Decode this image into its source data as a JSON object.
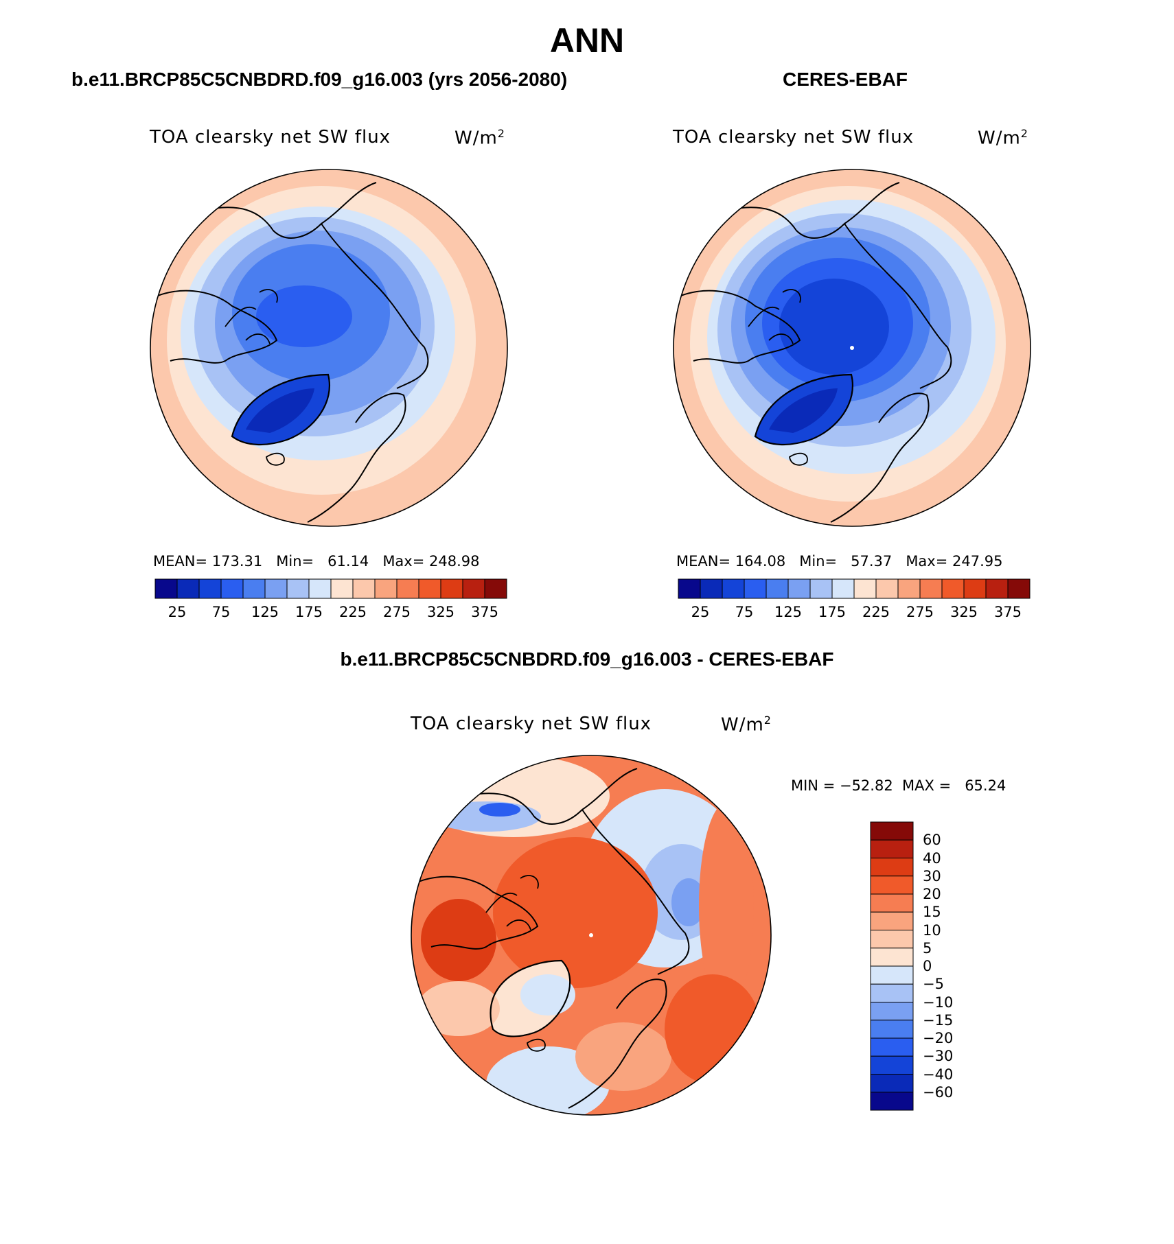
{
  "page": {
    "title": "ANN",
    "left_subtitle": "b.e11.BRCP85C5CNBDRD.f09_g16.003 (yrs 2056-2080)",
    "right_subtitle": "CERES-EBAF",
    "diff_subtitle": "b.e11.BRCP85C5CNBDRD.f09_g16.003 - CERES-EBAF"
  },
  "panels": [
    {
      "id": "model",
      "variable": "TOA clearsky net SW flux",
      "units": "W/m",
      "units_exp": "2",
      "mean_label": "MEAN=",
      "mean": "173.31",
      "min_label": "Min=",
      "min": "61.14",
      "max_label": "Max=",
      "max": "248.98"
    },
    {
      "id": "obs",
      "variable": "TOA clearsky net SW flux",
      "units": "W/m",
      "units_exp": "2",
      "mean_label": "MEAN=",
      "mean": "164.08",
      "min_label": "Min=",
      "min": "57.37",
      "max_label": "Max=",
      "max": "247.95"
    },
    {
      "id": "diff",
      "variable": "TOA clearsky net SW flux",
      "units": "W/m",
      "units_exp": "2",
      "minmax_text": "MIN = −52.82  MAX =   65.24"
    }
  ],
  "abs_colorbar": {
    "colors": [
      "#08088c",
      "#0a2ab8",
      "#1444d8",
      "#2a5ef0",
      "#4a7ef0",
      "#7aa0f2",
      "#a8c2f5",
      "#d6e6fa",
      "#fde4d2",
      "#fcc8ac",
      "#f9a47e",
      "#f67d52",
      "#f05a2a",
      "#dd3c14",
      "#b82010",
      "#850a08"
    ],
    "tick_labels": [
      "25",
      "75",
      "125",
      "175",
      "225",
      "275",
      "325",
      "375"
    ]
  },
  "diff_colorbar": {
    "colors": [
      "#850a08",
      "#b82010",
      "#dd3c14",
      "#f05a2a",
      "#f67d52",
      "#f9a47e",
      "#fcc8ac",
      "#fde4d2",
      "#d6e6fa",
      "#a8c2f5",
      "#7aa0f2",
      "#4a7ef0",
      "#2a5ef0",
      "#1444d8",
      "#0a2ab8",
      "#08088c"
    ],
    "tick_labels": [
      "60",
      "40",
      "30",
      "20",
      "15",
      "10",
      "5",
      "0",
      "−5",
      "−10",
      "−15",
      "−20",
      "−30",
      "−40",
      "−60"
    ]
  }
}
